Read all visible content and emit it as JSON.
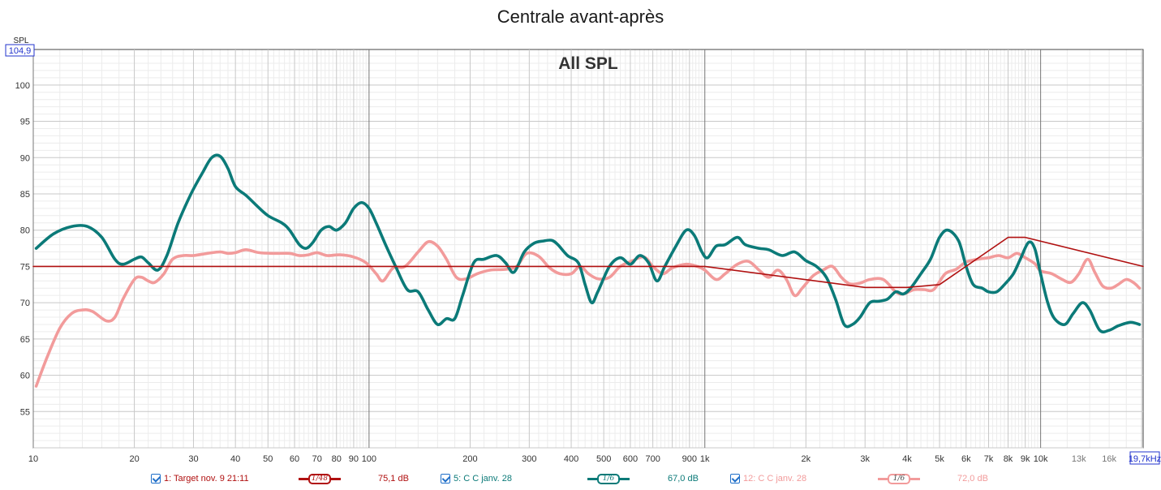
{
  "chart_data": {
    "type": "line",
    "title": "Centrale avant-après",
    "annotation": "All SPL",
    "ylabel": "SPL",
    "y_top_marker": "104,9",
    "x_right_marker": "19,7kHz",
    "x_scale": "log",
    "xlim": [
      10,
      20200
    ],
    "ylim": [
      50,
      104.9
    ],
    "grid": true,
    "y_ticks": [
      55,
      60,
      65,
      70,
      75,
      80,
      85,
      90,
      95,
      100
    ],
    "x_ticks": [
      {
        "v": 10,
        "label": "10"
      },
      {
        "v": 20,
        "label": "20"
      },
      {
        "v": 30,
        "label": "30"
      },
      {
        "v": 40,
        "label": "40"
      },
      {
        "v": 50,
        "label": "50"
      },
      {
        "v": 60,
        "label": "60"
      },
      {
        "v": 70,
        "label": "70"
      },
      {
        "v": 80,
        "label": "80"
      },
      {
        "v": 90,
        "label": "90"
      },
      {
        "v": 100,
        "label": "100"
      },
      {
        "v": 200,
        "label": "200"
      },
      {
        "v": 300,
        "label": "300"
      },
      {
        "v": 400,
        "label": "400"
      },
      {
        "v": 500,
        "label": "500"
      },
      {
        "v": 600,
        "label": "600"
      },
      {
        "v": 700,
        "label": "700"
      },
      {
        "v": 900,
        "label": "900"
      },
      {
        "v": 1000,
        "label": "1k"
      },
      {
        "v": 2000,
        "label": "2k"
      },
      {
        "v": 3000,
        "label": "3k"
      },
      {
        "v": 4000,
        "label": "4k"
      },
      {
        "v": 5000,
        "label": "5k"
      },
      {
        "v": 6000,
        "label": "6k"
      },
      {
        "v": 7000,
        "label": "7k"
      },
      {
        "v": 8000,
        "label": "8k"
      },
      {
        "v": 9000,
        "label": "9k"
      },
      {
        "v": 10000,
        "label": "10k"
      },
      {
        "v": 13000,
        "label": "13k"
      },
      {
        "v": 16000,
        "label": "16k"
      }
    ],
    "series": [
      {
        "name": "1: Target nov. 9 21:11",
        "color": "#b01010",
        "smoothing": "1/48",
        "level": "75,1 dB",
        "points": [
          [
            10,
            75
          ],
          [
            1000,
            75
          ],
          [
            3000,
            72.1
          ],
          [
            4000,
            72.1
          ],
          [
            5000,
            72.5
          ],
          [
            8000,
            79
          ],
          [
            9000,
            79
          ],
          [
            20200,
            75
          ]
        ]
      },
      {
        "name": "5: C C janv. 28",
        "color": "#0b7a78",
        "smoothing": "1/6",
        "level": "67,0 dB",
        "points": [
          [
            10.2,
            77.5
          ],
          [
            11.5,
            79.5
          ],
          [
            13,
            80.5
          ],
          [
            14.5,
            80.5
          ],
          [
            16,
            79
          ],
          [
            17.5,
            76
          ],
          [
            18.5,
            75.3
          ],
          [
            20,
            76
          ],
          [
            21,
            76.3
          ],
          [
            22,
            75.5
          ],
          [
            23.5,
            74.5
          ],
          [
            25,
            76.5
          ],
          [
            27,
            81
          ],
          [
            29.5,
            85
          ],
          [
            32,
            88
          ],
          [
            34,
            90
          ],
          [
            36,
            90.2
          ],
          [
            38,
            88.5
          ],
          [
            40,
            86
          ],
          [
            43,
            84.8
          ],
          [
            46,
            83.5
          ],
          [
            50,
            82
          ],
          [
            55,
            81
          ],
          [
            58,
            80
          ],
          [
            62,
            78
          ],
          [
            65,
            77.5
          ],
          [
            68,
            78.3
          ],
          [
            72,
            80
          ],
          [
            76,
            80.5
          ],
          [
            80,
            80
          ],
          [
            85,
            81
          ],
          [
            90,
            83
          ],
          [
            95,
            83.8
          ],
          [
            100,
            83
          ],
          [
            105,
            81
          ],
          [
            112,
            78
          ],
          [
            120,
            75
          ],
          [
            130,
            71.8
          ],
          [
            140,
            71.5
          ],
          [
            150,
            69
          ],
          [
            160,
            67
          ],
          [
            170,
            67.8
          ],
          [
            180,
            67.8
          ],
          [
            190,
            71
          ],
          [
            205,
            75.5
          ],
          [
            220,
            76
          ],
          [
            240,
            76.5
          ],
          [
            255,
            75.5
          ],
          [
            270,
            74.2
          ],
          [
            290,
            77
          ],
          [
            310,
            78.2
          ],
          [
            330,
            78.5
          ],
          [
            350,
            78.6
          ],
          [
            365,
            78
          ],
          [
            390,
            76.5
          ],
          [
            420,
            75.5
          ],
          [
            440,
            72.5
          ],
          [
            460,
            70
          ],
          [
            480,
            71.5
          ],
          [
            520,
            75
          ],
          [
            560,
            76.2
          ],
          [
            600,
            75.3
          ],
          [
            640,
            76.5
          ],
          [
            680,
            75.5
          ],
          [
            720,
            73
          ],
          [
            760,
            75
          ],
          [
            820,
            77.8
          ],
          [
            880,
            80
          ],
          [
            930,
            79.3
          ],
          [
            980,
            77
          ],
          [
            1020,
            76.2
          ],
          [
            1080,
            77.8
          ],
          [
            1150,
            78
          ],
          [
            1250,
            79
          ],
          [
            1320,
            78
          ],
          [
            1450,
            77.5
          ],
          [
            1550,
            77.3
          ],
          [
            1700,
            76.5
          ],
          [
            1850,
            77
          ],
          [
            2000,
            75.8
          ],
          [
            2150,
            75
          ],
          [
            2300,
            73.5
          ],
          [
            2450,
            70.5
          ],
          [
            2600,
            67
          ],
          [
            2750,
            67
          ],
          [
            2900,
            68
          ],
          [
            3100,
            70
          ],
          [
            3300,
            70.2
          ],
          [
            3500,
            70.5
          ],
          [
            3700,
            71.5
          ],
          [
            3900,
            71.2
          ],
          [
            4100,
            72
          ],
          [
            4400,
            74
          ],
          [
            4700,
            76
          ],
          [
            5000,
            79
          ],
          [
            5300,
            80
          ],
          [
            5700,
            78.5
          ],
          [
            6000,
            75
          ],
          [
            6300,
            72.5
          ],
          [
            6700,
            72
          ],
          [
            7000,
            71.5
          ],
          [
            7400,
            71.5
          ],
          [
            7800,
            72.5
          ],
          [
            8300,
            74
          ],
          [
            8700,
            76
          ],
          [
            9200,
            78.3
          ],
          [
            9600,
            77.5
          ],
          [
            10000,
            74
          ],
          [
            10500,
            70
          ],
          [
            11000,
            67.8
          ],
          [
            11800,
            67
          ],
          [
            12500,
            68.5
          ],
          [
            13300,
            70
          ],
          [
            14000,
            69
          ],
          [
            15000,
            66.2
          ],
          [
            16000,
            66.2
          ],
          [
            17000,
            66.8
          ],
          [
            18500,
            67.3
          ],
          [
            19700,
            67
          ]
        ]
      },
      {
        "name": "12: C C janv. 28",
        "color": "#f29b9b",
        "smoothing": "1/6",
        "level": "72,0 dB",
        "points": [
          [
            10.2,
            58.5
          ],
          [
            11,
            62.5
          ],
          [
            12,
            66.5
          ],
          [
            13,
            68.5
          ],
          [
            14,
            69
          ],
          [
            15,
            68.8
          ],
          [
            16.5,
            67.5
          ],
          [
            17.5,
            68
          ],
          [
            18.5,
            70.5
          ],
          [
            20,
            73.2
          ],
          [
            21,
            73.5
          ],
          [
            22,
            73
          ],
          [
            23,
            72.8
          ],
          [
            24.5,
            74
          ],
          [
            26,
            76
          ],
          [
            28,
            76.5
          ],
          [
            30,
            76.5
          ],
          [
            33,
            76.8
          ],
          [
            36,
            77
          ],
          [
            38,
            76.8
          ],
          [
            40,
            76.9
          ],
          [
            43,
            77.3
          ],
          [
            47,
            76.9
          ],
          [
            52,
            76.8
          ],
          [
            58,
            76.8
          ],
          [
            62,
            76.5
          ],
          [
            66,
            76.6
          ],
          [
            70,
            76.9
          ],
          [
            75,
            76.5
          ],
          [
            82,
            76.6
          ],
          [
            90,
            76.3
          ],
          [
            98,
            75.5
          ],
          [
            105,
            74
          ],
          [
            110,
            73
          ],
          [
            118,
            74.8
          ],
          [
            128,
            75
          ],
          [
            140,
            77
          ],
          [
            150,
            78.4
          ],
          [
            160,
            77.8
          ],
          [
            170,
            76
          ],
          [
            182,
            73.5
          ],
          [
            195,
            73.3
          ],
          [
            210,
            74
          ],
          [
            230,
            74.5
          ],
          [
            255,
            74.6
          ],
          [
            275,
            75
          ],
          [
            295,
            76.8
          ],
          [
            320,
            76.4
          ],
          [
            345,
            74.8
          ],
          [
            370,
            74
          ],
          [
            400,
            74
          ],
          [
            425,
            75
          ],
          [
            450,
            74
          ],
          [
            480,
            73.3
          ],
          [
            520,
            73.5
          ],
          [
            560,
            75
          ],
          [
            610,
            75.8
          ],
          [
            660,
            76.3
          ],
          [
            700,
            75
          ],
          [
            750,
            74
          ],
          [
            800,
            74.8
          ],
          [
            880,
            75.3
          ],
          [
            950,
            75
          ],
          [
            1000,
            74.5
          ],
          [
            1080,
            73.2
          ],
          [
            1150,
            74
          ],
          [
            1250,
            75.3
          ],
          [
            1350,
            75.7
          ],
          [
            1450,
            74.5
          ],
          [
            1550,
            73.5
          ],
          [
            1650,
            74.5
          ],
          [
            1750,
            73.2
          ],
          [
            1850,
            71
          ],
          [
            1950,
            72
          ],
          [
            2100,
            73.7
          ],
          [
            2250,
            74.5
          ],
          [
            2400,
            75
          ],
          [
            2550,
            73.5
          ],
          [
            2700,
            72.6
          ],
          [
            2900,
            72.7
          ],
          [
            3100,
            73.2
          ],
          [
            3400,
            73.2
          ],
          [
            3700,
            71.5
          ],
          [
            3900,
            71.2
          ],
          [
            4200,
            71.8
          ],
          [
            4500,
            71.8
          ],
          [
            4800,
            71.8
          ],
          [
            5200,
            74
          ],
          [
            5600,
            74.6
          ],
          [
            6000,
            75.6
          ],
          [
            6500,
            76
          ],
          [
            7000,
            76.2
          ],
          [
            7500,
            76.5
          ],
          [
            8000,
            76.2
          ],
          [
            8500,
            76.8
          ],
          [
            9000,
            76.2
          ],
          [
            9600,
            75.4
          ],
          [
            10000,
            74.4
          ],
          [
            10800,
            74
          ],
          [
            11500,
            73.3
          ],
          [
            12300,
            72.8
          ],
          [
            13000,
            74
          ],
          [
            13800,
            76
          ],
          [
            14500,
            74.2
          ],
          [
            15300,
            72.3
          ],
          [
            16200,
            72
          ],
          [
            17000,
            72.5
          ],
          [
            18000,
            73.2
          ],
          [
            19000,
            72.7
          ],
          [
            19700,
            72
          ]
        ]
      }
    ]
  }
}
